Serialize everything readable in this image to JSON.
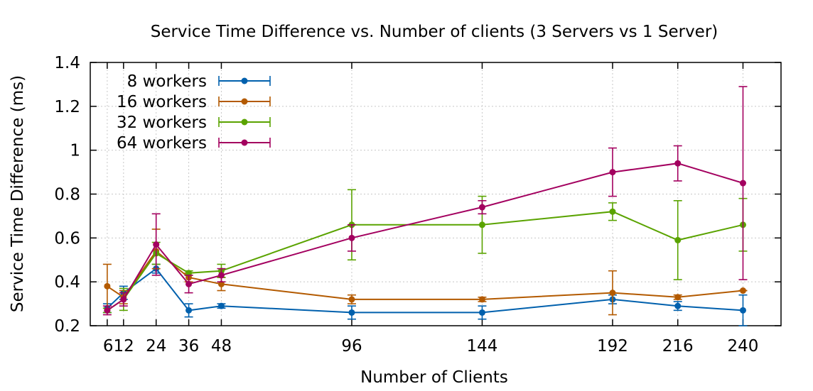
{
  "chart_data": {
    "type": "line",
    "title": "Service Time Difference vs. Number of clients (3 Servers vs 1 Server)",
    "xlabel": "Number of Clients",
    "ylabel": "Service Time Difference (ms)",
    "x": [
      6,
      12,
      24,
      36,
      48,
      96,
      144,
      192,
      216,
      240
    ],
    "x_tick_labels": [
      "6",
      "12",
      "24",
      "36",
      "48",
      "96",
      "144",
      "192",
      "216",
      "240"
    ],
    "x_tick_label_overrides": {
      "6": "612",
      "12": ""
    },
    "xlim": [
      -0.25,
      254
    ],
    "ylim": [
      0.2,
      1.4
    ],
    "y_ticks": [
      0.2,
      0.4,
      0.6,
      0.8,
      1.0,
      1.2,
      1.4
    ],
    "y_tick_labels": [
      "0.2",
      "0.4",
      "0.6",
      "0.8",
      "1",
      "1.2",
      "1.4"
    ],
    "grid": true,
    "legend_position": "top-left",
    "series": [
      {
        "name": "8 workers",
        "color": "#0060ad",
        "values": [
          0.28,
          0.35,
          0.46,
          0.27,
          0.29,
          0.26,
          0.26,
          0.32,
          0.29,
          0.27
        ],
        "error_low": [
          0.26,
          0.32,
          0.44,
          0.24,
          0.28,
          0.23,
          0.23,
          0.3,
          0.27,
          0.2
        ],
        "error_high": [
          0.3,
          0.38,
          0.48,
          0.3,
          0.3,
          0.29,
          0.29,
          0.34,
          0.31,
          0.34
        ]
      },
      {
        "name": "16 workers",
        "color": "#b35a00",
        "values": [
          0.38,
          0.33,
          0.54,
          0.42,
          0.39,
          0.32,
          0.32,
          0.35,
          0.33,
          0.36
        ],
        "error_low": [
          0.28,
          0.3,
          0.46,
          0.4,
          0.36,
          0.3,
          0.31,
          0.25,
          0.32,
          0.36
        ],
        "error_high": [
          0.48,
          0.36,
          0.64,
          0.44,
          0.42,
          0.34,
          0.33,
          0.45,
          0.34,
          0.36
        ]
      },
      {
        "name": "32 workers",
        "color": "#5aa300",
        "values": [
          0.27,
          0.32,
          0.53,
          0.44,
          0.45,
          0.66,
          0.66,
          0.72,
          0.59,
          0.66
        ],
        "error_low": [
          0.26,
          0.27,
          0.48,
          0.43,
          0.42,
          0.5,
          0.53,
          0.68,
          0.41,
          0.54
        ],
        "error_high": [
          0.28,
          0.37,
          0.58,
          0.45,
          0.48,
          0.82,
          0.79,
          0.76,
          0.77,
          0.78
        ]
      },
      {
        "name": "64 workers",
        "color": "#a3005f",
        "values": [
          0.27,
          0.32,
          0.57,
          0.39,
          0.43,
          0.6,
          0.74,
          0.9,
          0.94,
          0.85
        ],
        "error_low": [
          0.25,
          0.29,
          0.43,
          0.35,
          0.4,
          0.54,
          0.71,
          0.79,
          0.86,
          0.41
        ],
        "error_high": [
          0.29,
          0.35,
          0.71,
          0.43,
          0.46,
          0.66,
          0.77,
          1.01,
          1.02,
          1.29
        ]
      }
    ]
  }
}
